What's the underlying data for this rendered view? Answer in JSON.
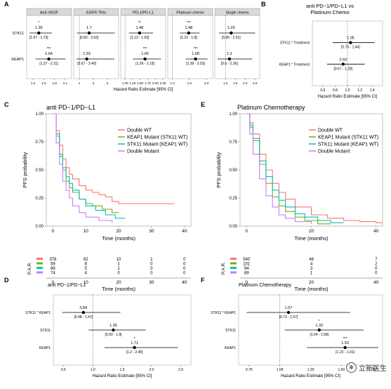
{
  "panel_labels": [
    "A",
    "B",
    "C",
    "D",
    "E",
    "F"
  ],
  "chart_data": [
    {
      "panel": "A",
      "type": "forest",
      "facets": [
        {
          "title": "Anti-VEGF",
          "rows": [
            {
              "label": "STK11",
              "est": 1.36,
              "ci": "[1.07 - 1.73]",
              "lo": 1.07,
              "hi": 1.73,
              "stars": "*"
            },
            {
              "label": "KEAP1",
              "est": 1.64,
              "ci": "[1.27 - 2.11]",
              "lo": 1.27,
              "hi": 2.11,
              "stars": "***"
            }
          ],
          "xlim": [
            1.1,
            2.2
          ],
          "ticks": [
            1.2,
            1.5,
            1.8,
            2.1
          ],
          "tick_labels": [
            "1.2",
            "1.5",
            "1.8",
            "2.1"
          ]
        },
        {
          "title": "EGFR TKIs",
          "rows": [
            {
              "label": "STK11",
              "est": 1.7,
              "ci": "[0.82 - 3.53]",
              "lo": 0.82,
              "hi": 3.53,
              "stars": ""
            },
            {
              "label": "KEAP1",
              "est": 1.53,
              "ci": "[0.67 - 3.49]",
              "lo": 0.67,
              "hi": 3.49,
              "stars": ""
            }
          ],
          "xlim": [
            0.8,
            3.6
          ],
          "ticks": [
            1,
            2,
            3
          ],
          "tick_labels": [
            "1",
            "2",
            "3"
          ]
        },
        {
          "title": "PD-1/PD-L1",
          "rows": [
            {
              "label": "STK11",
              "est": 1.48,
              "ci": "[1.13 - 1.93]",
              "lo": 1.13,
              "hi": 1.93,
              "stars": "**"
            },
            {
              "label": "KEAP1",
              "est": 1.66,
              "ci": "[1.26 - 2.19]",
              "lo": 1.26,
              "hi": 2.19,
              "stars": "***"
            }
          ],
          "xlim": [
            0.95,
            2.25
          ],
          "ticks": [
            1.0,
            1.25,
            1.5,
            1.75,
            2.0,
            2.25
          ],
          "tick_labels": [
            "1.00",
            "1.25",
            "1.50",
            "1.75",
            "2.00",
            "2.25"
          ]
        },
        {
          "title": "Platinum chemo",
          "rows": [
            {
              "label": "STK11",
              "est": 1.48,
              "ci": "[1.22 - 1.8]",
              "lo": 1.22,
              "hi": 1.8,
              "stars": "***"
            },
            {
              "label": "KEAP1",
              "est": 1.68,
              "ci": "[1.39 - 2.03]",
              "lo": 1.39,
              "hi": 2.03,
              "stars": "***"
            }
          ],
          "xlim": [
            0.95,
            2.1
          ],
          "ticks": [
            1.0,
            1.5,
            2.0
          ],
          "tick_labels": [
            "1.0",
            "1.5",
            "2.0"
          ]
        },
        {
          "title": "Single chemo",
          "rows": [
            {
              "label": "STK11",
              "est": 1.29,
              "ci": "[0.66 - 2.51]",
              "lo": 0.66,
              "hi": 2.51,
              "stars": ""
            },
            {
              "label": "KEAP1",
              "est": 1.2,
              "ci": "[0.6 - 2.36]",
              "lo": 0.6,
              "hi": 2.36,
              "stars": ""
            }
          ],
          "xlim": [
            0.6,
            2.6
          ],
          "ticks": [
            1.0,
            1.5,
            2.0,
            2.5
          ],
          "tick_labels": [
            "1.0",
            "1.5",
            "2.0",
            "2.5"
          ]
        }
      ],
      "xlabel": "Hazard Ratio Estimate [95% CI]"
    },
    {
      "panel": "B",
      "type": "forest",
      "title": "anti PD−1/PD−L1 vs\nPlatinum Chemo",
      "rows": [
        {
          "label": "STK11 * Treatment",
          "est": 1.05,
          "ci": "[0.76 - 1.44]",
          "lo": 0.76,
          "hi": 1.44
        },
        {
          "label": "KEAP1 * Treatment",
          "est": 0.93,
          "ci": "[0.67 - 1.28]",
          "lo": 0.67,
          "hi": 1.28
        }
      ],
      "xlim": [
        0.5,
        1.5
      ],
      "ticks": [
        0.6,
        0.8,
        1.0,
        1.2,
        1.4
      ],
      "tick_labels": [
        "0.6",
        "0.8",
        "1.0",
        "1.2",
        "1.4"
      ],
      "xlabel": "Hazard Ratio Estimate [95% CI]"
    },
    {
      "panel": "C",
      "type": "line",
      "title": "anti PD−1/PD−L1",
      "ylabel": "PFS probability",
      "xlabel": "Time (months)",
      "xlim": [
        -2,
        42
      ],
      "ylim": [
        0,
        1
      ],
      "xticks": [
        0,
        10,
        20,
        30,
        40
      ],
      "yticks": [
        0,
        0.25,
        0.5,
        0.75,
        1
      ],
      "ytick_labels": [
        "0.00",
        "0.25",
        "0.50",
        "0.75",
        "1.00"
      ],
      "legend": [
        "Double WT",
        "KEAP1 Mutant (STK11 WT)",
        "STK11 Mutant (KEAP1 WT)",
        "Double Mutant"
      ],
      "colors": [
        "#f8766d",
        "#7cae00",
        "#00bfc4",
        "#c77cff"
      ],
      "series": [
        {
          "name": "Double WT",
          "x": [
            0,
            1,
            2,
            3,
            4,
            5,
            6,
            8,
            10,
            12,
            14,
            16,
            18,
            20,
            25,
            30,
            37
          ],
          "y": [
            1,
            0.85,
            0.72,
            0.6,
            0.52,
            0.46,
            0.42,
            0.36,
            0.32,
            0.3,
            0.28,
            0.26,
            0.22,
            0.2,
            0.2,
            0.2,
            0.2
          ]
        },
        {
          "name": "KEAP1 Mutant (STK11 WT)",
          "x": [
            0,
            1,
            2,
            3,
            4,
            5,
            6,
            8,
            10,
            12,
            15,
            18,
            20
          ],
          "y": [
            1,
            0.8,
            0.62,
            0.5,
            0.4,
            0.34,
            0.3,
            0.24,
            0.2,
            0.18,
            0.15,
            0.12,
            0.12
          ]
        },
        {
          "name": "STK11 Mutant (KEAP1 WT)",
          "x": [
            0,
            1,
            2,
            3,
            4,
            5,
            6,
            8,
            10,
            13,
            16,
            19,
            22
          ],
          "y": [
            1,
            0.82,
            0.64,
            0.52,
            0.44,
            0.38,
            0.32,
            0.24,
            0.18,
            0.14,
            0.1,
            0.07,
            0.07
          ]
        },
        {
          "name": "Double Mutant",
          "x": [
            0,
            1,
            2,
            3,
            4,
            5,
            6,
            8,
            10,
            14,
            18
          ],
          "y": [
            1,
            0.74,
            0.55,
            0.4,
            0.32,
            0.25,
            0.18,
            0.12,
            0.08,
            0.05,
            0.03
          ]
        }
      ],
      "risk_table": {
        "label": "P.A.R.",
        "times": [
          0,
          10,
          20,
          30,
          40
        ],
        "rows": [
          [
            378,
            62,
            10,
            1,
            0
          ],
          [
            59,
            8,
            1,
            0,
            0
          ],
          [
            88,
            5,
            1,
            0,
            0
          ],
          [
            74,
            4,
            0,
            0,
            0
          ]
        ]
      }
    },
    {
      "panel": "E",
      "type": "line",
      "title": "Platinum Chemotherapy",
      "ylabel": "PFS probability",
      "xlabel": "Time (months)",
      "xlim": [
        -2,
        42
      ],
      "ylim": [
        0,
        1
      ],
      "xticks": [
        0,
        20,
        40
      ],
      "yticks": [
        0,
        0.25,
        0.5,
        0.75,
        1
      ],
      "ytick_labels": [
        "0.00",
        "0.25",
        "0.50",
        "0.75",
        "1.00"
      ],
      "legend": [
        "Double WT",
        "KEAP1 Mutant (STK11 WT)",
        "STK11 Mutant (KEAP1 WT)",
        "Double Mutant"
      ],
      "colors": [
        "#f8766d",
        "#7cae00",
        "#00bfc4",
        "#c77cff"
      ],
      "series": [
        {
          "name": "Double WT",
          "x": [
            0,
            1,
            2,
            4,
            6,
            8,
            10,
            12,
            15,
            20,
            25,
            30,
            35,
            40,
            42
          ],
          "y": [
            1,
            0.92,
            0.82,
            0.64,
            0.5,
            0.38,
            0.3,
            0.24,
            0.17,
            0.1,
            0.07,
            0.05,
            0.04,
            0.03,
            0.03
          ]
        },
        {
          "name": "KEAP1 Mutant (STK11 WT)",
          "x": [
            0,
            1,
            2,
            4,
            6,
            8,
            10,
            12,
            15,
            18,
            22,
            26
          ],
          "y": [
            1,
            0.88,
            0.76,
            0.55,
            0.38,
            0.26,
            0.18,
            0.13,
            0.08,
            0.05,
            0.02,
            0.02
          ]
        },
        {
          "name": "STK11 Mutant (KEAP1 WT)",
          "x": [
            0,
            1,
            2,
            4,
            6,
            8,
            10,
            12,
            15,
            18,
            22,
            26,
            30
          ],
          "y": [
            1,
            0.9,
            0.78,
            0.58,
            0.44,
            0.32,
            0.23,
            0.17,
            0.11,
            0.08,
            0.05,
            0.03,
            0.03
          ]
        },
        {
          "name": "Double Mutant",
          "x": [
            0,
            1,
            2,
            4,
            6,
            8,
            10,
            12,
            15,
            20
          ],
          "y": [
            1,
            0.82,
            0.64,
            0.42,
            0.27,
            0.17,
            0.1,
            0.07,
            0.04,
            0.02
          ]
        }
      ],
      "risk_table": {
        "label": "P.A.R.",
        "times": [
          0,
          20,
          40
        ],
        "rows": [
          [
            540,
            48,
            7
          ],
          [
            101,
            4,
            2
          ],
          [
            94,
            3,
            0
          ],
          [
            89,
            1,
            0
          ]
        ]
      }
    },
    {
      "panel": "D",
      "type": "forest",
      "title": "anti PD−1/PD−L1",
      "rows": [
        {
          "label": "STK11 * KEAP1",
          "est": 0.84,
          "ci": "[0.48 - 1.47]",
          "lo": 0.48,
          "hi": 1.47
        },
        {
          "label": "STK11",
          "est": 1.35,
          "ci": "[0.93 - 1.9]",
          "lo": 0.93,
          "hi": 1.9
        },
        {
          "label": "KEAP1",
          "est": 1.71,
          "ci": "[1.2 - 2.45]",
          "lo": 1.2,
          "hi": 2.45,
          "stars": "*"
        }
      ],
      "xlim": [
        0.4,
        2.6
      ],
      "ticks": [
        0.5,
        1.0,
        1.5,
        2.0,
        2.5
      ],
      "tick_labels": [
        "0.5",
        "1.0",
        "1.5",
        "2.0",
        "2.5"
      ],
      "xlabel": "Hazard Ratio Estimate [95% CI]"
    },
    {
      "panel": "F",
      "type": "forest",
      "title": "Platinum Chemotherapy",
      "rows": [
        {
          "label": "STK11 * KEAP1",
          "est": 1.07,
          "ci": "[0.73 - 1.57]",
          "lo": 0.73,
          "hi": 1.57
        },
        {
          "label": "STK11",
          "est": 1.32,
          "ci": "[1.04 - 1.68]",
          "lo": 1.04,
          "hi": 1.68,
          "stars": "*"
        },
        {
          "label": "KEAP1",
          "est": 1.53,
          "ci": "[1.22 - 1.91]",
          "lo": 1.22,
          "hi": 1.91,
          "stars": "***"
        }
      ],
      "xlim": [
        0.7,
        1.8
      ],
      "ticks": [
        0.75,
        1.0,
        1.25,
        1.5,
        1.75
      ],
      "tick_labels": [
        "0.75",
        "1.00",
        "1.25",
        "1.50",
        "1.75"
      ],
      "xlabel": "Hazard Ratio Estimate [95% CI]"
    }
  ],
  "watermark": {
    "text": "立新医生",
    "icon": "wechat-icon"
  }
}
